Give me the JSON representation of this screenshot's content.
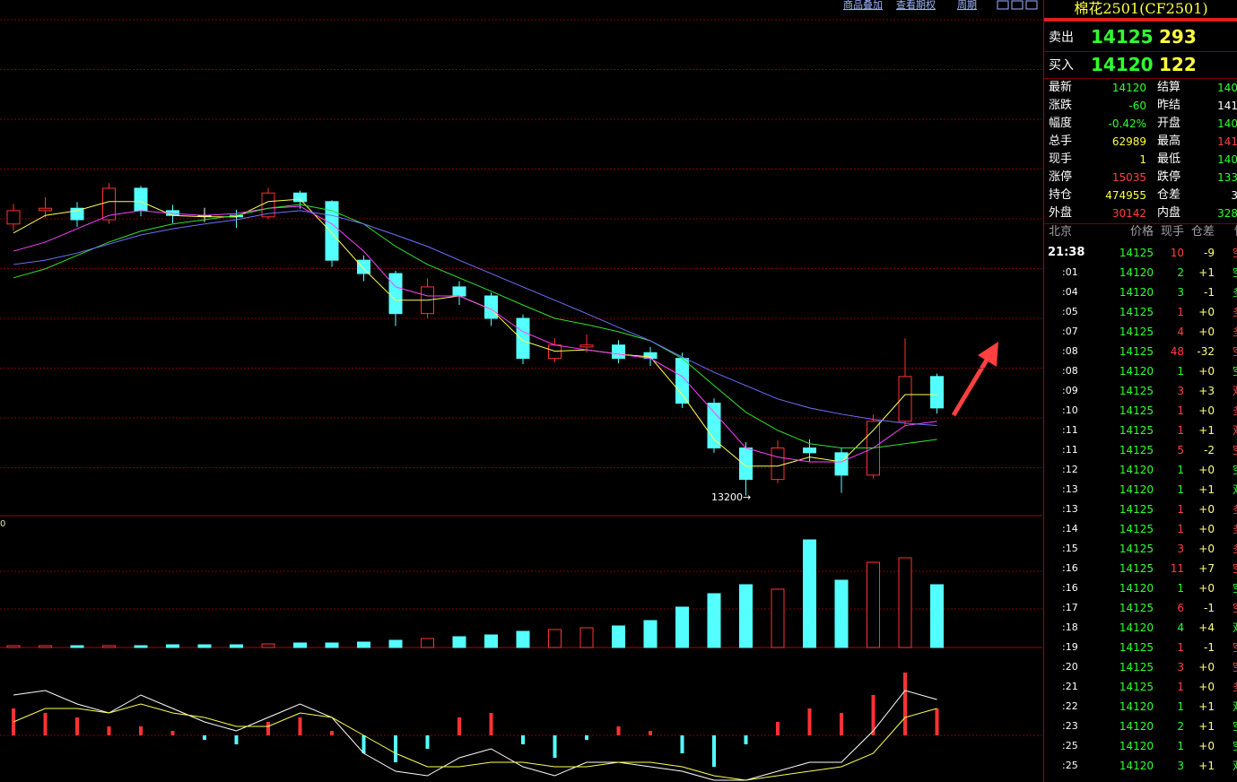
{
  "toolbar": [
    "商品叠加",
    "查看期权",
    "周期"
  ],
  "chart_data": [
    {
      "type": "candlestick",
      "open": [
        16050,
        16190,
        16215,
        16095,
        16425,
        16190,
        16140,
        16140,
        16125,
        16375,
        16285,
        15670,
        15530,
        15110,
        15390,
        15295,
        15060,
        14640,
        14760,
        14780,
        14700,
        14640,
        14170,
        13700,
        13370,
        13700,
        13650,
        13415,
        13980,
        14450
      ],
      "high": [
        16260,
        16330,
        16280,
        16480,
        16450,
        16250,
        16220,
        16200,
        16430,
        16400,
        16300,
        15720,
        15560,
        15480,
        15450,
        15330,
        15100,
        14850,
        14890,
        14830,
        14760,
        14700,
        14220,
        13760,
        13780,
        13790,
        13700,
        14050,
        14850,
        14480
      ],
      "low": [
        15980,
        16120,
        16020,
        16050,
        16130,
        16060,
        16070,
        16010,
        16100,
        16210,
        15600,
        15450,
        14980,
        15060,
        15200,
        14980,
        14580,
        14600,
        14700,
        14590,
        14560,
        14120,
        13650,
        13200,
        13330,
        13560,
        13230,
        13380,
        13930,
        14060
      ],
      "close": [
        16190,
        16215,
        16095,
        16425,
        16190,
        16140,
        16140,
        16125,
        16375,
        16285,
        15670,
        15530,
        15110,
        15390,
        15295,
        15060,
        14640,
        14780,
        14780,
        14640,
        14640,
        14170,
        13700,
        13370,
        13700,
        13650,
        13415,
        13980,
        14450,
        14120
      ],
      "up_color": "#ff3232",
      "down_color": "#54ffff",
      "series": [
        {
          "color": "#ffff50",
          "values": [
            15955,
            16140,
            16190,
            16285,
            16285,
            16140,
            16125,
            16125,
            16285,
            16310,
            15955,
            15580,
            15250,
            15250,
            15295,
            15155,
            14825,
            14715,
            14730,
            14685,
            14655,
            14260,
            13790,
            13510,
            13510,
            13605,
            13555,
            13885,
            14260,
            14260
          ]
        },
        {
          "color": "#ff40ff",
          "values": [
            15765,
            15860,
            16000,
            16140,
            16190,
            16160,
            16140,
            16160,
            16215,
            16235,
            16050,
            15765,
            15390,
            15295,
            15295,
            15155,
            14920,
            14780,
            14730,
            14685,
            14640,
            14450,
            14075,
            13700,
            13605,
            13555,
            13555,
            13700,
            13935,
            13980
          ]
        },
        {
          "color": "#30e030",
          "values": [
            15485,
            15580,
            15720,
            15860,
            15975,
            16050,
            16095,
            16140,
            16215,
            16255,
            16190,
            16050,
            15815,
            15625,
            15485,
            15345,
            15200,
            15060,
            14995,
            14920,
            14825,
            14640,
            14355,
            14075,
            13885,
            13745,
            13700,
            13700,
            13745,
            13790
          ]
        },
        {
          "color": "#7070ff",
          "values": [
            15625,
            15670,
            15745,
            15840,
            15935,
            16000,
            16050,
            16095,
            16160,
            16190,
            16140,
            16050,
            15935,
            15815,
            15670,
            15530,
            15390,
            15250,
            15110,
            14965,
            14825,
            14655,
            14495,
            14355,
            14215,
            14120,
            14055,
            14000,
            13960,
            13935
          ]
        }
      ],
      "ylim": [
        12990,
        18400
      ],
      "annotation": "13200→"
    },
    {
      "type": "bar",
      "values": [
        2000,
        2000,
        2000,
        2000,
        2000,
        3000,
        3000,
        3000,
        4000,
        5000,
        5000,
        6000,
        8000,
        10000,
        12000,
        14000,
        18000,
        20000,
        22000,
        24000,
        30000,
        45000,
        60000,
        70000,
        65000,
        120000,
        75000,
        95000,
        100000,
        70000
      ],
      "ylim": [
        0,
        144000
      ],
      "axis_label": "0"
    },
    {
      "type": "macd",
      "values": [
        30,
        25,
        20,
        10,
        10,
        5,
        -5,
        -10,
        15,
        20,
        5,
        -20,
        -30,
        -15,
        20,
        25,
        -10,
        -25,
        -5,
        10,
        5,
        -20,
        -35,
        -10,
        15,
        30,
        25,
        45,
        70,
        30
      ],
      "series": [
        {
          "color": "#ffffff",
          "values": [
            45,
            50,
            35,
            25,
            45,
            30,
            15,
            5,
            20,
            35,
            20,
            -20,
            -40,
            -45,
            -25,
            -15,
            -35,
            -45,
            -30,
            -30,
            -35,
            -40,
            -50,
            -50,
            -40,
            -30,
            -30,
            5,
            50,
            40
          ]
        },
        {
          "color": "#ffff50",
          "values": [
            15,
            30,
            30,
            25,
            35,
            25,
            20,
            10,
            10,
            25,
            20,
            0,
            -20,
            -35,
            -35,
            -30,
            -30,
            -35,
            -35,
            -30,
            -30,
            -35,
            -45,
            -50,
            -45,
            -40,
            -35,
            -20,
            20,
            30
          ]
        }
      ],
      "ylim": [
        -52,
        90
      ]
    }
  ],
  "quote": {
    "title": "棉花2501(CF2501)",
    "sell": {
      "label": "卖出",
      "price": 14125,
      "volume": 293
    },
    "buy": {
      "label": "买入",
      "price": 14120,
      "volume": 122
    },
    "stats": [
      [
        "最新",
        14120,
        "结算",
        140
      ],
      [
        "涨跌",
        -60,
        "昨结",
        141
      ],
      [
        "幅度",
        "-0.42%",
        "开盘",
        140
      ],
      [
        "总手",
        62989,
        "最高",
        141
      ],
      [
        "现手",
        1,
        "最低",
        140
      ],
      [
        "涨停",
        15035,
        "跌停",
        133
      ],
      [
        "持仓",
        474955,
        "仓差",
        3
      ],
      [
        "外盘",
        30142,
        "内盘",
        328
      ]
    ]
  },
  "ticks": {
    "header": [
      "北京",
      "价格",
      "现手",
      "仓差",
      "性"
    ],
    "rows": [
      [
        "21:38",
        14125,
        10,
        "-9",
        "空"
      ],
      [
        ":01",
        14120,
        2,
        "+1",
        "空"
      ],
      [
        ":04",
        14120,
        3,
        "-1",
        "多"
      ],
      [
        ":05",
        14125,
        1,
        "+0",
        "多"
      ],
      [
        ":07",
        14125,
        4,
        "+0",
        "多"
      ],
      [
        ":08",
        14125,
        48,
        "-32",
        "空"
      ],
      [
        ":08",
        14120,
        1,
        "+0",
        "空"
      ],
      [
        ":09",
        14125,
        3,
        "+3",
        "双"
      ],
      [
        ":10",
        14125,
        1,
        "+0",
        "多"
      ],
      [
        ":11",
        14125,
        1,
        "+1",
        "双"
      ],
      [
        ":11",
        14125,
        5,
        "-2",
        "空"
      ],
      [
        ":12",
        14120,
        1,
        "+0",
        "空"
      ],
      [
        ":13",
        14120,
        1,
        "+1",
        "双"
      ],
      [
        ":13",
        14125,
        1,
        "+0",
        "多"
      ],
      [
        ":14",
        14125,
        1,
        "+0",
        "多"
      ],
      [
        ":15",
        14125,
        3,
        "+0",
        "多"
      ],
      [
        ":16",
        14125,
        11,
        "+7",
        "空"
      ],
      [
        ":16",
        14120,
        1,
        "+0",
        "空"
      ],
      [
        ":17",
        14125,
        6,
        "-1",
        "空"
      ],
      [
        ":18",
        14120,
        4,
        "+4",
        "双"
      ],
      [
        ":19",
        14125,
        1,
        "-1",
        "空"
      ],
      [
        ":20",
        14125,
        3,
        "+0",
        "空"
      ],
      [
        ":21",
        14125,
        1,
        "+0",
        "多"
      ],
      [
        ":22",
        14120,
        1,
        "+1",
        "双"
      ],
      [
        ":23",
        14120,
        2,
        "+1",
        "空"
      ],
      [
        ":25",
        14120,
        1,
        "+0",
        "空"
      ],
      [
        ":25",
        14120,
        3,
        "+1",
        "双"
      ]
    ]
  }
}
